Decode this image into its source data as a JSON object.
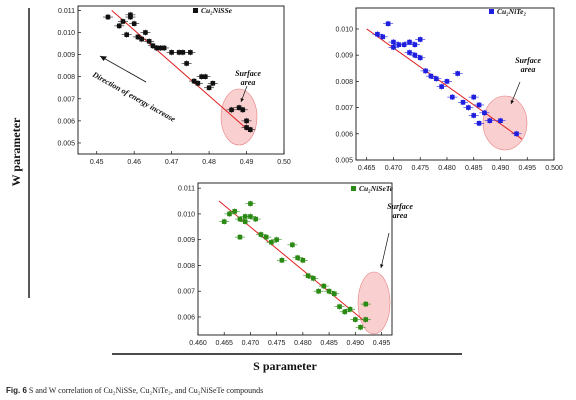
{
  "figure": {
    "y_axis_title": "W parameter",
    "x_axis_title": "S parameter",
    "caption_label": "Fig. 6",
    "caption_text": "S and W correlation of Cu₂NiSSe, Cu₂NiTe₂, and Cu₂NiSeTe compounds"
  },
  "chart_data": [
    {
      "type": "scatter",
      "series": [
        {
          "name": "Cu₂NiSSe",
          "color": "#111111",
          "x": [
            0.453,
            0.456,
            0.457,
            0.458,
            0.459,
            0.459,
            0.46,
            0.461,
            0.462,
            0.463,
            0.464,
            0.465,
            0.466,
            0.467,
            0.468,
            0.47,
            0.472,
            0.473,
            0.474,
            0.475,
            0.476,
            0.477,
            0.478,
            0.479,
            0.48,
            0.481,
            0.486,
            0.488,
            0.489,
            0.49,
            0.49,
            0.491
          ],
          "y": [
            0.0107,
            0.0103,
            0.0105,
            0.0099,
            0.0107,
            0.0108,
            0.0104,
            0.0098,
            0.0097,
            0.01,
            0.0096,
            0.0094,
            0.0093,
            0.0093,
            0.0093,
            0.0091,
            0.0091,
            0.0091,
            0.0086,
            0.0091,
            0.0078,
            0.0077,
            0.008,
            0.008,
            0.0075,
            0.0077,
            0.0065,
            0.0066,
            0.0065,
            0.006,
            0.0057,
            0.0056
          ]
        }
      ],
      "fit_line": {
        "x": [
          0.454,
          0.491
        ],
        "y": [
          0.011,
          0.0055
        ]
      },
      "xlim": [
        0.445,
        0.5
      ],
      "ylim": [
        0.0045,
        0.0112
      ],
      "xticks": [
        "0.45",
        "0.46",
        "0.47",
        "0.48",
        "0.49",
        "0.50"
      ],
      "yticks": [
        "0.005",
        "0.006",
        "0.007",
        "0.008",
        "0.009",
        "0.010",
        "0.011"
      ],
      "annotations": [
        "Direction of energy increase",
        "Surface",
        "area"
      ]
    },
    {
      "type": "scatter",
      "series": [
        {
          "name": "Cu₂NiTe₂",
          "color": "#1f1fe0",
          "x": [
            0.467,
            0.468,
            0.469,
            0.47,
            0.47,
            0.471,
            0.472,
            0.473,
            0.473,
            0.474,
            0.474,
            0.475,
            0.475,
            0.476,
            0.477,
            0.478,
            0.479,
            0.48,
            0.481,
            0.482,
            0.483,
            0.484,
            0.485,
            0.485,
            0.486,
            0.486,
            0.487,
            0.488,
            0.49,
            0.493
          ],
          "y": [
            0.0098,
            0.0097,
            0.0102,
            0.0093,
            0.0095,
            0.0094,
            0.0094,
            0.0095,
            0.0091,
            0.009,
            0.0094,
            0.0096,
            0.0089,
            0.0084,
            0.0082,
            0.0081,
            0.0078,
            0.008,
            0.0074,
            0.0083,
            0.0072,
            0.007,
            0.0074,
            0.0067,
            0.0071,
            0.0064,
            0.0068,
            0.0065,
            0.0065,
            0.006
          ]
        }
      ],
      "fit_line": {
        "x": [
          0.465,
          0.494
        ],
        "y": [
          0.01,
          0.0058
        ]
      },
      "xlim": [
        0.463,
        0.5
      ],
      "ylim": [
        0.005,
        0.0108
      ],
      "xticks": [
        "0.465",
        "0.470",
        "0.475",
        "0.480",
        "0.485",
        "0.490",
        "0.495",
        "0.500"
      ],
      "yticks": [
        "0.005",
        "0.006",
        "0.007",
        "0.008",
        "0.009",
        "0.010"
      ],
      "annotations": [
        "Surface",
        "area"
      ]
    },
    {
      "type": "scatter",
      "series": [
        {
          "name": "Cu₂NiSeTe",
          "color": "#2a8a14",
          "x": [
            0.465,
            0.466,
            0.467,
            0.468,
            0.468,
            0.469,
            0.469,
            0.47,
            0.47,
            0.471,
            0.472,
            0.473,
            0.474,
            0.475,
            0.476,
            0.478,
            0.479,
            0.48,
            0.481,
            0.482,
            0.483,
            0.484,
            0.485,
            0.486,
            0.487,
            0.488,
            0.489,
            0.49,
            0.491,
            0.492,
            0.492
          ],
          "y": [
            0.0097,
            0.01,
            0.0101,
            0.0098,
            0.0091,
            0.0097,
            0.0099,
            0.0104,
            0.0099,
            0.0098,
            0.0092,
            0.0091,
            0.0089,
            0.009,
            0.0082,
            0.0088,
            0.0083,
            0.0082,
            0.0076,
            0.0075,
            0.007,
            0.0072,
            0.007,
            0.0069,
            0.0064,
            0.0062,
            0.0063,
            0.0059,
            0.0056,
            0.0065,
            0.0059
          ]
        }
      ],
      "fit_line": {
        "x": [
          0.464,
          0.492
        ],
        "y": [
          0.0105,
          0.0058
        ]
      },
      "xlim": [
        0.46,
        0.497
      ],
      "ylim": [
        0.0053,
        0.0112
      ],
      "xticks": [
        "0.460",
        "0.465",
        "0.470",
        "0.475",
        "0.480",
        "0.485",
        "0.490",
        "0.495"
      ],
      "yticks": [
        "0.006",
        "0.007",
        "0.008",
        "0.009",
        "0.010",
        "0.011"
      ],
      "annotations": [
        "Surface",
        "area"
      ]
    }
  ]
}
